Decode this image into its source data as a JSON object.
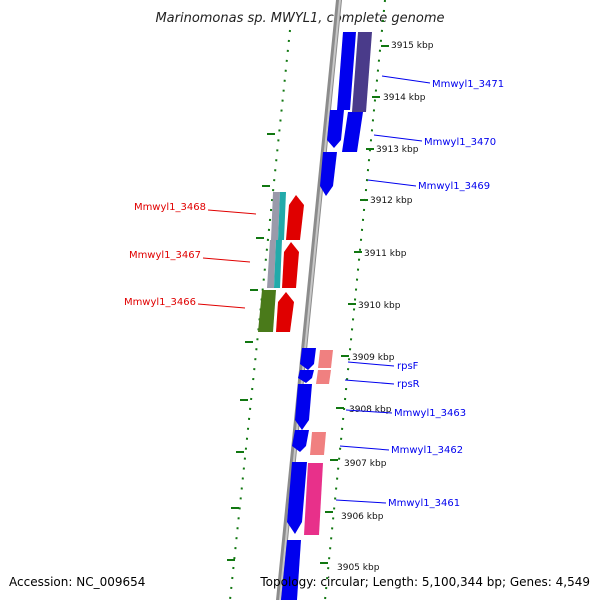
{
  "title": "Marinomonas sp. MWYL1, complete genome",
  "footer": {
    "accession": "Accession: NC_009654",
    "topology": "Topology: circular; Length: 5,100,344 bp; Genes: 4,549"
  },
  "colors": {
    "backbone": "#8c8c8c",
    "ticks": "#117711",
    "forward": "#e00000",
    "reverse": "#0000ee",
    "rna_pink": "#f08080",
    "rna_magenta": "#e8308a",
    "teal": "#22aaaa",
    "olive": "#4a7a1a",
    "gray": "#9a9aaa",
    "purple": "#4a3b8a"
  },
  "kbp_labels": [
    "3915 kbp",
    "3914 kbp",
    "3913 kbp",
    "3912 kbp",
    "3911 kbp",
    "3910 kbp",
    "3909 kbp",
    "3908 kbp",
    "3907 kbp",
    "3906 kbp",
    "3905 kbp"
  ],
  "genes_left": [
    {
      "name": "Mmwyl1_3468"
    },
    {
      "name": "Mmwyl1_3467"
    },
    {
      "name": "Mmwyl1_3466"
    }
  ],
  "genes_right": [
    {
      "name": "Mmwyl1_3471"
    },
    {
      "name": "Mmwyl1_3470"
    },
    {
      "name": "Mmwyl1_3469"
    },
    {
      "name": "rpsF"
    },
    {
      "name": "rpsR"
    },
    {
      "name": "Mmwyl1_3463"
    },
    {
      "name": "Mmwyl1_3462"
    },
    {
      "name": "Mmwyl1_3461"
    }
  ]
}
